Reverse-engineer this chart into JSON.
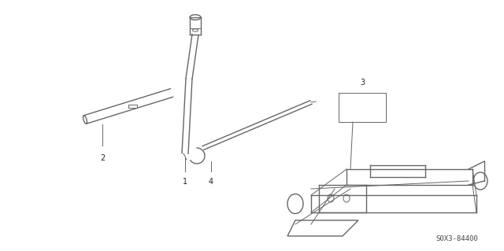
{
  "background_color": "#ffffff",
  "line_color": "#666666",
  "text_color": "#222222",
  "part_number_text": "S0X3-84400",
  "figsize": [
    6.4,
    3.19
  ],
  "dpi": 100
}
